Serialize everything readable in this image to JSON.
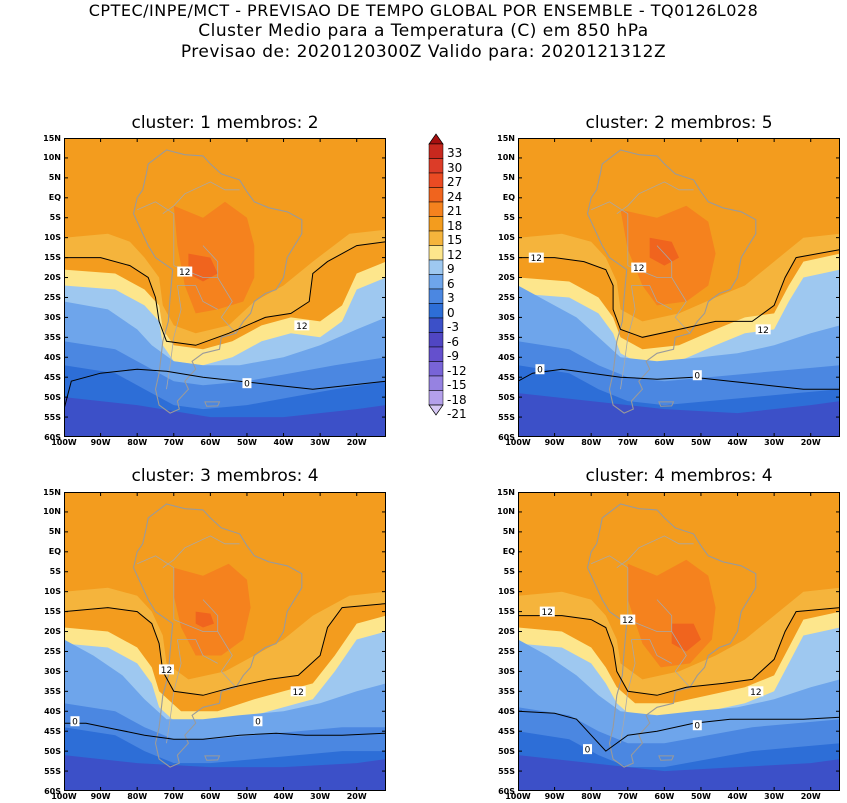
{
  "header": {
    "line1": "CPTEC/INPE/MCT - PREVISAO DE TEMPO GLOBAL POR ENSEMBLE - TQ0126L028",
    "line2": "Cluster Medio para a Temperatura (C) em 850 hPa",
    "line3": "Previsao de: 2020120300Z   Valido para: 2020121312Z"
  },
  "panels": [
    {
      "title": "cluster: 1   membros: 2"
    },
    {
      "title": "cluster: 2   membros: 5"
    },
    {
      "title": "cluster: 3   membros: 4"
    },
    {
      "title": "cluster: 4   membros: 4"
    }
  ],
  "lat_labels": [
    "15N",
    "10N",
    "5N",
    "EQ",
    "5S",
    "10S",
    "15S",
    "20S",
    "25S",
    "30S",
    "35S",
    "40S",
    "45S",
    "50S",
    "55S",
    "60S"
  ],
  "lon_labels": [
    "100W",
    "90W",
    "80W",
    "70W",
    "60W",
    "50W",
    "40W",
    "30W",
    "20W"
  ],
  "contour_labels": {
    "twelve": "12",
    "zero": "0"
  },
  "colorbar": {
    "labels": [
      "33",
      "30",
      "27",
      "24",
      "21",
      "18",
      "15",
      "12",
      "9",
      "6",
      "3",
      "0",
      "-3",
      "-6",
      "-9",
      "-12",
      "-15",
      "-18",
      "-21"
    ],
    "colors": [
      "#a50f0f",
      "#c8281e",
      "#dc3c28",
      "#eb4b23",
      "#f0641e",
      "#f5821e",
      "#f39c1e",
      "#f5b43c",
      "#fde68c",
      "#9ec8f0",
      "#6ea5eb",
      "#4b87e1",
      "#2d6ed7",
      "#3c50c8",
      "#5046c3",
      "#6450cd",
      "#7864d7",
      "#9682e1",
      "#b4a0eb",
      "#d7c8f5"
    ]
  }
}
